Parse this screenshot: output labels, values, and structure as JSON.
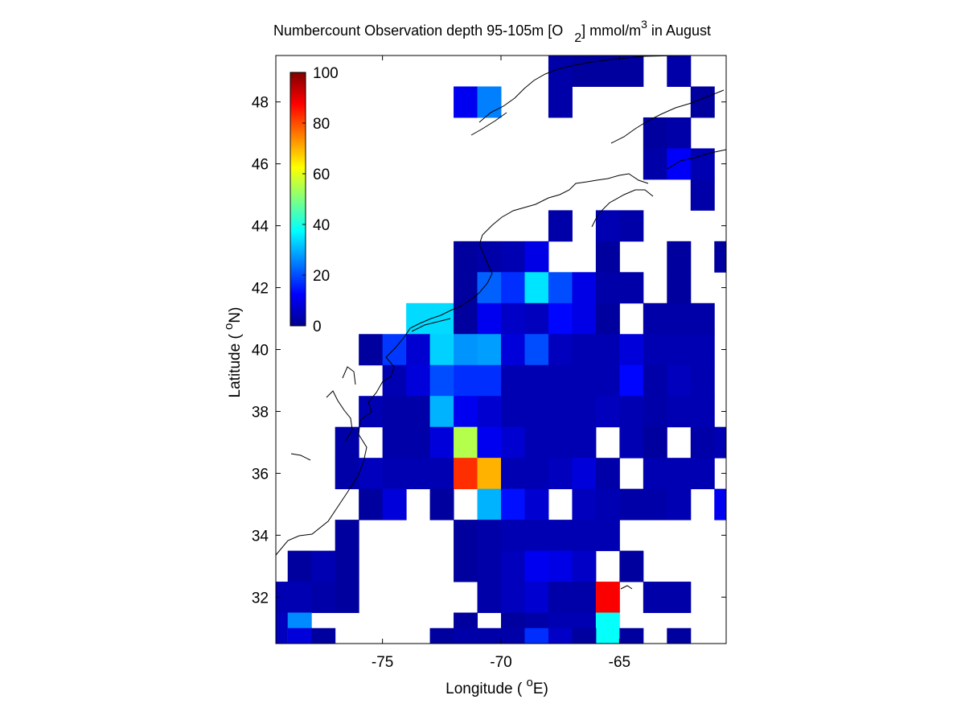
{
  "chart_data": {
    "type": "heatmap",
    "title_main": "Numbercount Observation depth 95-105m [O",
    "title_sub": "2",
    "title_mid": "] mmol/m",
    "title_sup": "3",
    "title_end": " in August",
    "xlabel_pre": "Longitude ( ",
    "xlabel_sup": "o",
    "xlabel_post": "E)",
    "ylabel_pre": "Latitude ( ",
    "ylabel_sup": "o",
    "ylabel_post": "N)",
    "xlim": [
      -79.5,
      -60.5
    ],
    "ylim": [
      30.5,
      49.5
    ],
    "xticks": [
      -75,
      -70,
      -65
    ],
    "yticks": [
      32,
      34,
      36,
      38,
      40,
      42,
      44,
      46,
      48
    ],
    "colorbar": {
      "min": 0,
      "max": 100,
      "ticks": [
        0,
        20,
        40,
        60,
        80,
        100
      ],
      "colormap": "jet"
    },
    "cell_size_deg": 1,
    "cells": [
      {
        "lon": -67.5,
        "lat": 49,
        "v": 4
      },
      {
        "lon": -66.5,
        "lat": 49,
        "v": 3
      },
      {
        "lon": -65.5,
        "lat": 49,
        "v": 3
      },
      {
        "lon": -64.5,
        "lat": 49,
        "v": 3
      },
      {
        "lon": -62.5,
        "lat": 49,
        "v": 4
      },
      {
        "lon": -71.5,
        "lat": 48,
        "v": 11
      },
      {
        "lon": -70.5,
        "lat": 48,
        "v": 25
      },
      {
        "lon": -67.5,
        "lat": 48,
        "v": 4
      },
      {
        "lon": -61.5,
        "lat": 48,
        "v": 3
      },
      {
        "lon": -63.5,
        "lat": 47,
        "v": 3
      },
      {
        "lon": -62.5,
        "lat": 47,
        "v": 4
      },
      {
        "lon": -63.5,
        "lat": 46,
        "v": 4
      },
      {
        "lon": -62.5,
        "lat": 46,
        "v": 12
      },
      {
        "lon": -61.5,
        "lat": 46,
        "v": 5
      },
      {
        "lon": -61.5,
        "lat": 45,
        "v": 4
      },
      {
        "lon": -67.5,
        "lat": 44,
        "v": 4
      },
      {
        "lon": -65.5,
        "lat": 44,
        "v": 5
      },
      {
        "lon": -64.5,
        "lat": 44,
        "v": 4
      },
      {
        "lon": -71.5,
        "lat": 43,
        "v": 3
      },
      {
        "lon": -70.5,
        "lat": 43,
        "v": 4
      },
      {
        "lon": -69.5,
        "lat": 43,
        "v": 5
      },
      {
        "lon": -68.5,
        "lat": 43,
        "v": 10
      },
      {
        "lon": -65.5,
        "lat": 43,
        "v": 3
      },
      {
        "lon": -62.5,
        "lat": 43,
        "v": 3
      },
      {
        "lon": -60.5,
        "lat": 43,
        "v": 3
      },
      {
        "lon": -71.5,
        "lat": 42,
        "v": 3
      },
      {
        "lon": -70.5,
        "lat": 42,
        "v": 22
      },
      {
        "lon": -69.5,
        "lat": 42,
        "v": 17
      },
      {
        "lon": -68.5,
        "lat": 42,
        "v": 35
      },
      {
        "lon": -67.5,
        "lat": 42,
        "v": 20
      },
      {
        "lon": -66.5,
        "lat": 42,
        "v": 10
      },
      {
        "lon": -65.5,
        "lat": 42,
        "v": 4
      },
      {
        "lon": -64.5,
        "lat": 42,
        "v": 4
      },
      {
        "lon": -62.5,
        "lat": 42,
        "v": 3
      },
      {
        "lon": -73.5,
        "lat": 41,
        "v": 34
      },
      {
        "lon": -72.5,
        "lat": 41,
        "v": 34
      },
      {
        "lon": -71.5,
        "lat": 41,
        "v": 3
      },
      {
        "lon": -70.5,
        "lat": 41,
        "v": 11
      },
      {
        "lon": -69.5,
        "lat": 41,
        "v": 7
      },
      {
        "lon": -68.5,
        "lat": 41,
        "v": 6
      },
      {
        "lon": -67.5,
        "lat": 41,
        "v": 13
      },
      {
        "lon": -66.5,
        "lat": 41,
        "v": 10
      },
      {
        "lon": -65.5,
        "lat": 41,
        "v": 3
      },
      {
        "lon": -63.5,
        "lat": 41,
        "v": 4
      },
      {
        "lon": -62.5,
        "lat": 41,
        "v": 4
      },
      {
        "lon": -61.5,
        "lat": 41,
        "v": 4
      },
      {
        "lon": -75.5,
        "lat": 40,
        "v": 3
      },
      {
        "lon": -74.5,
        "lat": 40,
        "v": 18
      },
      {
        "lon": -73.5,
        "lat": 40,
        "v": 8
      },
      {
        "lon": -72.5,
        "lat": 40,
        "v": 33
      },
      {
        "lon": -71.5,
        "lat": 40,
        "v": 27
      },
      {
        "lon": -70.5,
        "lat": 40,
        "v": 28
      },
      {
        "lon": -69.5,
        "lat": 40,
        "v": 9
      },
      {
        "lon": -68.5,
        "lat": 40,
        "v": 20
      },
      {
        "lon": -67.5,
        "lat": 40,
        "v": 6
      },
      {
        "lon": -66.5,
        "lat": 40,
        "v": 5
      },
      {
        "lon": -65.5,
        "lat": 40,
        "v": 5
      },
      {
        "lon": -64.5,
        "lat": 40,
        "v": 9
      },
      {
        "lon": -63.5,
        "lat": 40,
        "v": 5
      },
      {
        "lon": -62.5,
        "lat": 40,
        "v": 5
      },
      {
        "lon": -61.5,
        "lat": 40,
        "v": 5
      },
      {
        "lon": -74.5,
        "lat": 39,
        "v": 5
      },
      {
        "lon": -73.5,
        "lat": 39,
        "v": 9
      },
      {
        "lon": -72.5,
        "lat": 39,
        "v": 20
      },
      {
        "lon": -71.5,
        "lat": 39,
        "v": 17
      },
      {
        "lon": -70.5,
        "lat": 39,
        "v": 17
      },
      {
        "lon": -69.5,
        "lat": 39,
        "v": 5
      },
      {
        "lon": -68.5,
        "lat": 39,
        "v": 5
      },
      {
        "lon": -67.5,
        "lat": 39,
        "v": 5
      },
      {
        "lon": -66.5,
        "lat": 39,
        "v": 5
      },
      {
        "lon": -65.5,
        "lat": 39,
        "v": 5
      },
      {
        "lon": -64.5,
        "lat": 39,
        "v": 13
      },
      {
        "lon": -63.5,
        "lat": 39,
        "v": 4
      },
      {
        "lon": -62.5,
        "lat": 39,
        "v": 6
      },
      {
        "lon": -61.5,
        "lat": 39,
        "v": 5
      },
      {
        "lon": -75.5,
        "lat": 38,
        "v": 5
      },
      {
        "lon": -74.5,
        "lat": 38,
        "v": 4
      },
      {
        "lon": -73.5,
        "lat": 38,
        "v": 4
      },
      {
        "lon": -72.5,
        "lat": 38,
        "v": 30
      },
      {
        "lon": -71.5,
        "lat": 38,
        "v": 11
      },
      {
        "lon": -70.5,
        "lat": 38,
        "v": 8
      },
      {
        "lon": -69.5,
        "lat": 38,
        "v": 5
      },
      {
        "lon": -68.5,
        "lat": 38,
        "v": 5
      },
      {
        "lon": -67.5,
        "lat": 38,
        "v": 5
      },
      {
        "lon": -66.5,
        "lat": 38,
        "v": 5
      },
      {
        "lon": -65.5,
        "lat": 38,
        "v": 6
      },
      {
        "lon": -64.5,
        "lat": 38,
        "v": 5
      },
      {
        "lon": -63.5,
        "lat": 38,
        "v": 4
      },
      {
        "lon": -62.5,
        "lat": 38,
        "v": 5
      },
      {
        "lon": -61.5,
        "lat": 38,
        "v": 5
      },
      {
        "lon": -76.5,
        "lat": 37,
        "v": 4
      },
      {
        "lon": -74.5,
        "lat": 37,
        "v": 4
      },
      {
        "lon": -73.5,
        "lat": 37,
        "v": 4
      },
      {
        "lon": -72.5,
        "lat": 37,
        "v": 9
      },
      {
        "lon": -71.5,
        "lat": 37,
        "v": 55
      },
      {
        "lon": -70.5,
        "lat": 37,
        "v": 11
      },
      {
        "lon": -69.5,
        "lat": 37,
        "v": 8
      },
      {
        "lon": -68.5,
        "lat": 37,
        "v": 5
      },
      {
        "lon": -67.5,
        "lat": 37,
        "v": 5
      },
      {
        "lon": -66.5,
        "lat": 37,
        "v": 5
      },
      {
        "lon": -64.5,
        "lat": 37,
        "v": 5
      },
      {
        "lon": -63.5,
        "lat": 37,
        "v": 3
      },
      {
        "lon": -61.5,
        "lat": 37,
        "v": 4
      },
      {
        "lon": -60.5,
        "lat": 37,
        "v": 5
      },
      {
        "lon": -76.5,
        "lat": 36,
        "v": 4
      },
      {
        "lon": -75.5,
        "lat": 36,
        "v": 6
      },
      {
        "lon": -74.5,
        "lat": 36,
        "v": 5
      },
      {
        "lon": -73.5,
        "lat": 36,
        "v": 5
      },
      {
        "lon": -72.5,
        "lat": 36,
        "v": 5
      },
      {
        "lon": -71.5,
        "lat": 36,
        "v": 83
      },
      {
        "lon": -70.5,
        "lat": 36,
        "v": 70
      },
      {
        "lon": -69.5,
        "lat": 36,
        "v": 5
      },
      {
        "lon": -68.5,
        "lat": 36,
        "v": 5
      },
      {
        "lon": -67.5,
        "lat": 36,
        "v": 6
      },
      {
        "lon": -66.5,
        "lat": 36,
        "v": 9
      },
      {
        "lon": -65.5,
        "lat": 36,
        "v": 4
      },
      {
        "lon": -63.5,
        "lat": 36,
        "v": 5
      },
      {
        "lon": -62.5,
        "lat": 36,
        "v": 5
      },
      {
        "lon": -61.5,
        "lat": 36,
        "v": 5
      },
      {
        "lon": -75.5,
        "lat": 35,
        "v": 3
      },
      {
        "lon": -74.5,
        "lat": 35,
        "v": 9
      },
      {
        "lon": -72.5,
        "lat": 35,
        "v": 3
      },
      {
        "lon": -70.5,
        "lat": 35,
        "v": 30
      },
      {
        "lon": -69.5,
        "lat": 35,
        "v": 14
      },
      {
        "lon": -68.5,
        "lat": 35,
        "v": 8
      },
      {
        "lon": -66.5,
        "lat": 35,
        "v": 6
      },
      {
        "lon": -65.5,
        "lat": 35,
        "v": 5
      },
      {
        "lon": -64.5,
        "lat": 35,
        "v": 4
      },
      {
        "lon": -63.5,
        "lat": 35,
        "v": 4
      },
      {
        "lon": -62.5,
        "lat": 35,
        "v": 5
      },
      {
        "lon": -60.5,
        "lat": 35,
        "v": 11
      },
      {
        "lon": -76.5,
        "lat": 34,
        "v": 3
      },
      {
        "lon": -71.5,
        "lat": 34,
        "v": 3
      },
      {
        "lon": -70.5,
        "lat": 34,
        "v": 4
      },
      {
        "lon": -69.5,
        "lat": 34,
        "v": 5
      },
      {
        "lon": -68.5,
        "lat": 34,
        "v": 5
      },
      {
        "lon": -67.5,
        "lat": 34,
        "v": 5
      },
      {
        "lon": -66.5,
        "lat": 34,
        "v": 5
      },
      {
        "lon": -65.5,
        "lat": 34,
        "v": 5
      },
      {
        "lon": -78.5,
        "lat": 33,
        "v": 3
      },
      {
        "lon": -77.5,
        "lat": 33,
        "v": 5
      },
      {
        "lon": -76.5,
        "lat": 33,
        "v": 3
      },
      {
        "lon": -71.5,
        "lat": 33,
        "v": 3
      },
      {
        "lon": -70.5,
        "lat": 33,
        "v": 4
      },
      {
        "lon": -69.5,
        "lat": 33,
        "v": 6
      },
      {
        "lon": -68.5,
        "lat": 33,
        "v": 11
      },
      {
        "lon": -67.5,
        "lat": 33,
        "v": 10
      },
      {
        "lon": -66.5,
        "lat": 33,
        "v": 7
      },
      {
        "lon": -64.5,
        "lat": 33,
        "v": 3
      },
      {
        "lon": -79.5,
        "lat": 32,
        "v": 5
      },
      {
        "lon": -78.5,
        "lat": 32,
        "v": 5
      },
      {
        "lon": -77.5,
        "lat": 32,
        "v": 4
      },
      {
        "lon": -76.5,
        "lat": 32,
        "v": 3
      },
      {
        "lon": -70.5,
        "lat": 32,
        "v": 4
      },
      {
        "lon": -69.5,
        "lat": 32,
        "v": 6
      },
      {
        "lon": -68.5,
        "lat": 32,
        "v": 8
      },
      {
        "lon": -67.5,
        "lat": 32,
        "v": 4
      },
      {
        "lon": -66.5,
        "lat": 32,
        "v": 4
      },
      {
        "lon": -65.5,
        "lat": 32,
        "v": 88
      },
      {
        "lon": -63.5,
        "lat": 32,
        "v": 4
      },
      {
        "lon": -62.5,
        "lat": 32,
        "v": 4
      },
      {
        "lon": -79.5,
        "lat": 31,
        "v": 6
      },
      {
        "lon": -78.5,
        "lat": 31,
        "v": 26
      },
      {
        "lon": -71.5,
        "lat": 31,
        "v": 3
      },
      {
        "lon": -69.5,
        "lat": 31,
        "v": 3
      },
      {
        "lon": -68.5,
        "lat": 31,
        "v": 4
      },
      {
        "lon": -67.5,
        "lat": 31,
        "v": 5
      },
      {
        "lon": -66.5,
        "lat": 31,
        "v": 5
      },
      {
        "lon": -65.5,
        "lat": 31,
        "v": 38
      },
      {
        "lon": -78.5,
        "lat": 30.5,
        "v": 9
      },
      {
        "lon": -77.5,
        "lat": 30.5,
        "v": 3
      },
      {
        "lon": -72.5,
        "lat": 30.5,
        "v": 3
      },
      {
        "lon": -71.5,
        "lat": 30.5,
        "v": 4
      },
      {
        "lon": -70.5,
        "lat": 30.5,
        "v": 4
      },
      {
        "lon": -69.5,
        "lat": 30.5,
        "v": 4
      },
      {
        "lon": -68.5,
        "lat": 30.5,
        "v": 17
      },
      {
        "lon": -67.5,
        "lat": 30.5,
        "v": 7
      },
      {
        "lon": -66.5,
        "lat": 30.5,
        "v": 3
      },
      {
        "lon": -64.5,
        "lat": 30.5,
        "v": 3
      },
      {
        "lon": -62.5,
        "lat": 30.5,
        "v": 3
      }
    ]
  }
}
